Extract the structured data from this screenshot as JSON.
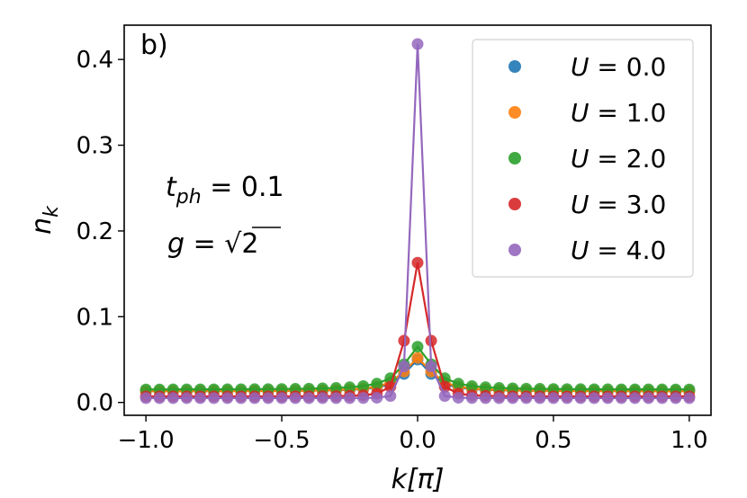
{
  "chart_data": {
    "type": "line",
    "panel_label": "b)",
    "xlabel": "k[π]",
    "ylabel": "n_k",
    "ylabel_main": "n",
    "ylabel_sub": "k",
    "xlim": [
      -1.08,
      1.08
    ],
    "ylim": [
      -0.015,
      0.44
    ],
    "xticks": [
      -1.0,
      -0.5,
      0.0,
      0.5,
      1.0
    ],
    "xtick_labels": [
      "−1.0",
      "−0.5",
      "0.0",
      "0.5",
      "1.0"
    ],
    "yticks": [
      0.0,
      0.1,
      0.2,
      0.3,
      0.4
    ],
    "ytick_labels": [
      "0.0",
      "0.1",
      "0.2",
      "0.3",
      "0.4"
    ],
    "annotations": {
      "tph": "t_ph = 0.1",
      "tph_main": "t",
      "tph_sub": "ph",
      "tph_value": " = 0.1",
      "g": "g = √2",
      "g_main": "g",
      "g_eq": " = ",
      "g_root": "√",
      "g_value": "2"
    },
    "legend_position": "upper-right",
    "n_points": 41,
    "series": [
      {
        "name": "U = 0.0",
        "U": "U",
        "value_text": " = 0.0",
        "color": "#1f77b4",
        "base": 0.013,
        "peak": 0.05,
        "width": 0.055,
        "power": 1
      },
      {
        "name": "U = 1.0",
        "U": "U",
        "value_text": " = 1.0",
        "color": "#ff7f0e",
        "base": 0.013,
        "peak": 0.052,
        "width": 0.06,
        "power": 1
      },
      {
        "name": "U = 2.0",
        "U": "U",
        "value_text": " = 2.0",
        "color": "#2ca02c",
        "base": 0.015,
        "peak": 0.065,
        "width": 0.06,
        "power": 1
      },
      {
        "name": "U = 3.0",
        "U": "U",
        "value_text": " = 3.0",
        "color": "#d62728",
        "base": 0.007,
        "peak": 0.163,
        "width": 0.045,
        "power": 1.6
      },
      {
        "name": "U = 4.0",
        "U": "U",
        "value_text": " = 4.0",
        "color": "#9467bd",
        "base": 0.005,
        "peak": 0.418,
        "width": 0.028,
        "power": 2
      }
    ]
  }
}
